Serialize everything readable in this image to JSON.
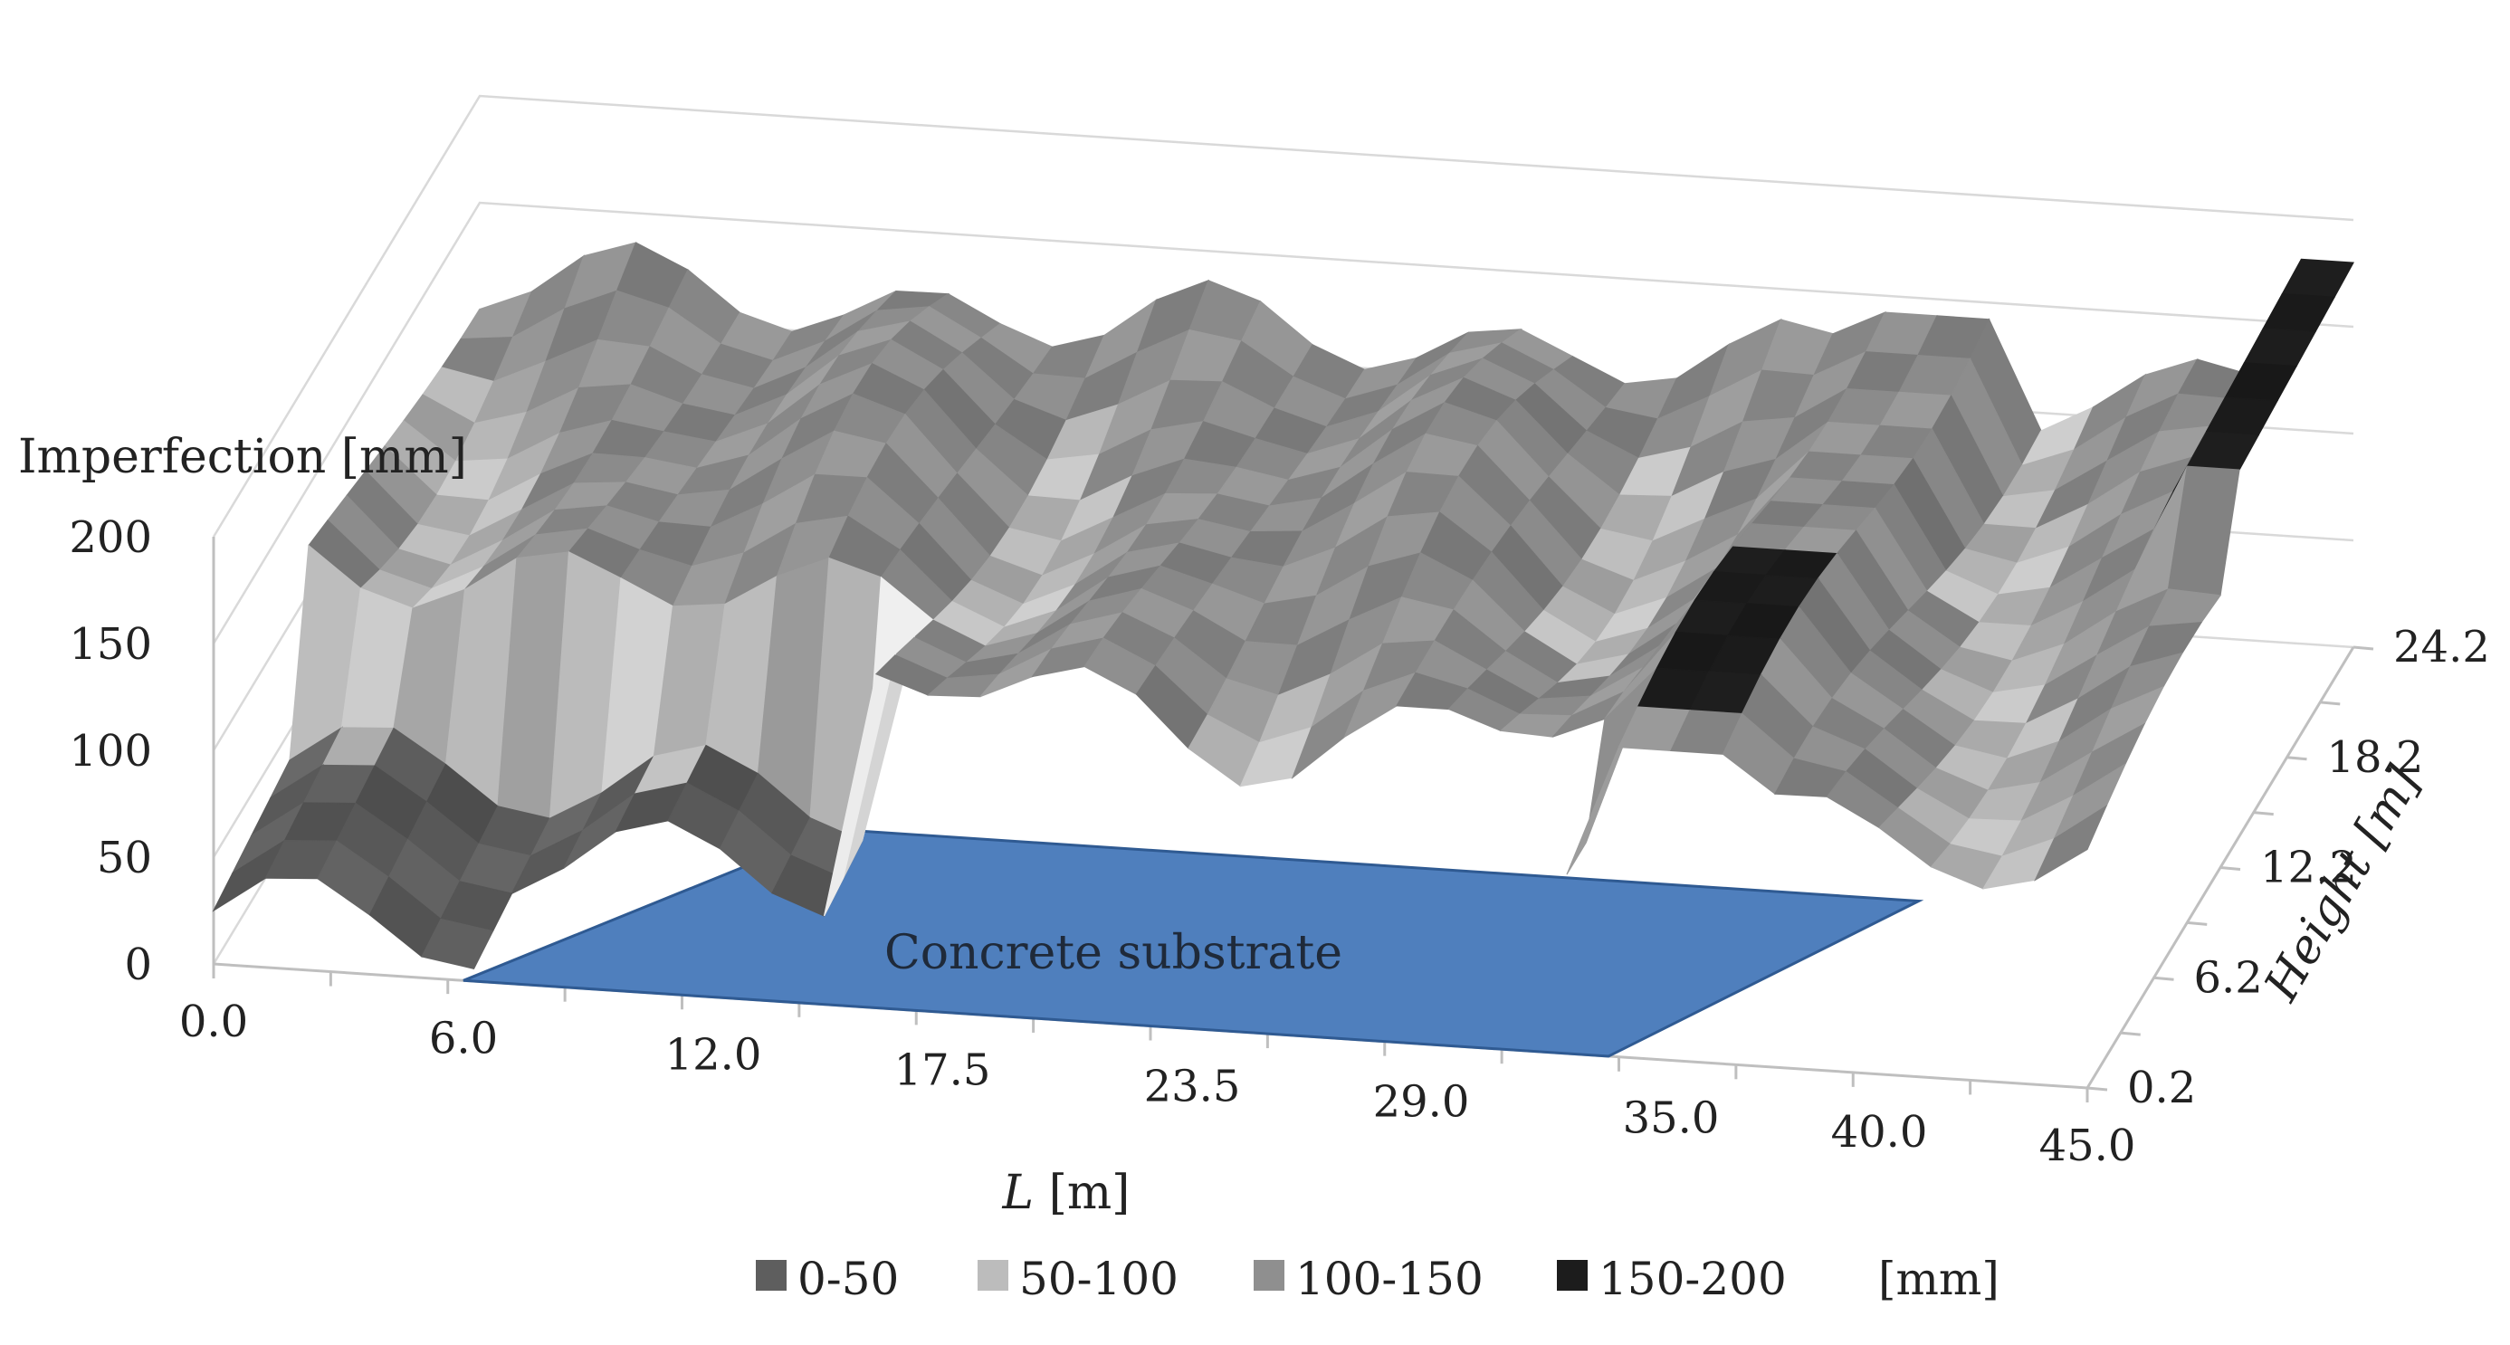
{
  "chart_data": {
    "type": "surface",
    "title": "",
    "z_axis": {
      "label": "Imperfection [mm]",
      "ticks": [
        "0",
        "50",
        "100",
        "150",
        "200"
      ],
      "range": [
        0,
        200
      ]
    },
    "x_axis": {
      "label_italic": "L",
      "label_unit": " [m]",
      "ticks": [
        "0.0",
        "6.0",
        "12.0",
        "17.5",
        "23.5",
        "29.0",
        "35.0",
        "40.0",
        "45.0"
      ],
      "range": [
        0,
        45
      ]
    },
    "y_axis": {
      "label": "Height [m]",
      "ticks": [
        "0.2",
        "6.2",
        "12.2",
        "18.2",
        "24.2"
      ],
      "range": [
        0.2,
        24.2
      ]
    },
    "annotation": "Concrete substrate",
    "legend": {
      "unit": "[mm]",
      "items": [
        {
          "label": "0-50",
          "color": "#5e5e5e"
        },
        {
          "label": "50-100",
          "color": "#bcbcbc"
        },
        {
          "label": "100-150",
          "color": "#8f8f8f"
        },
        {
          "label": "150-200",
          "color": "#1c1c1c"
        }
      ]
    },
    "colors": {
      "substrate": "#4f7fbd",
      "substrate_edge": "#2f5a92",
      "grid": "#d9d9d9",
      "axis": "#bfbfbf"
    }
  }
}
